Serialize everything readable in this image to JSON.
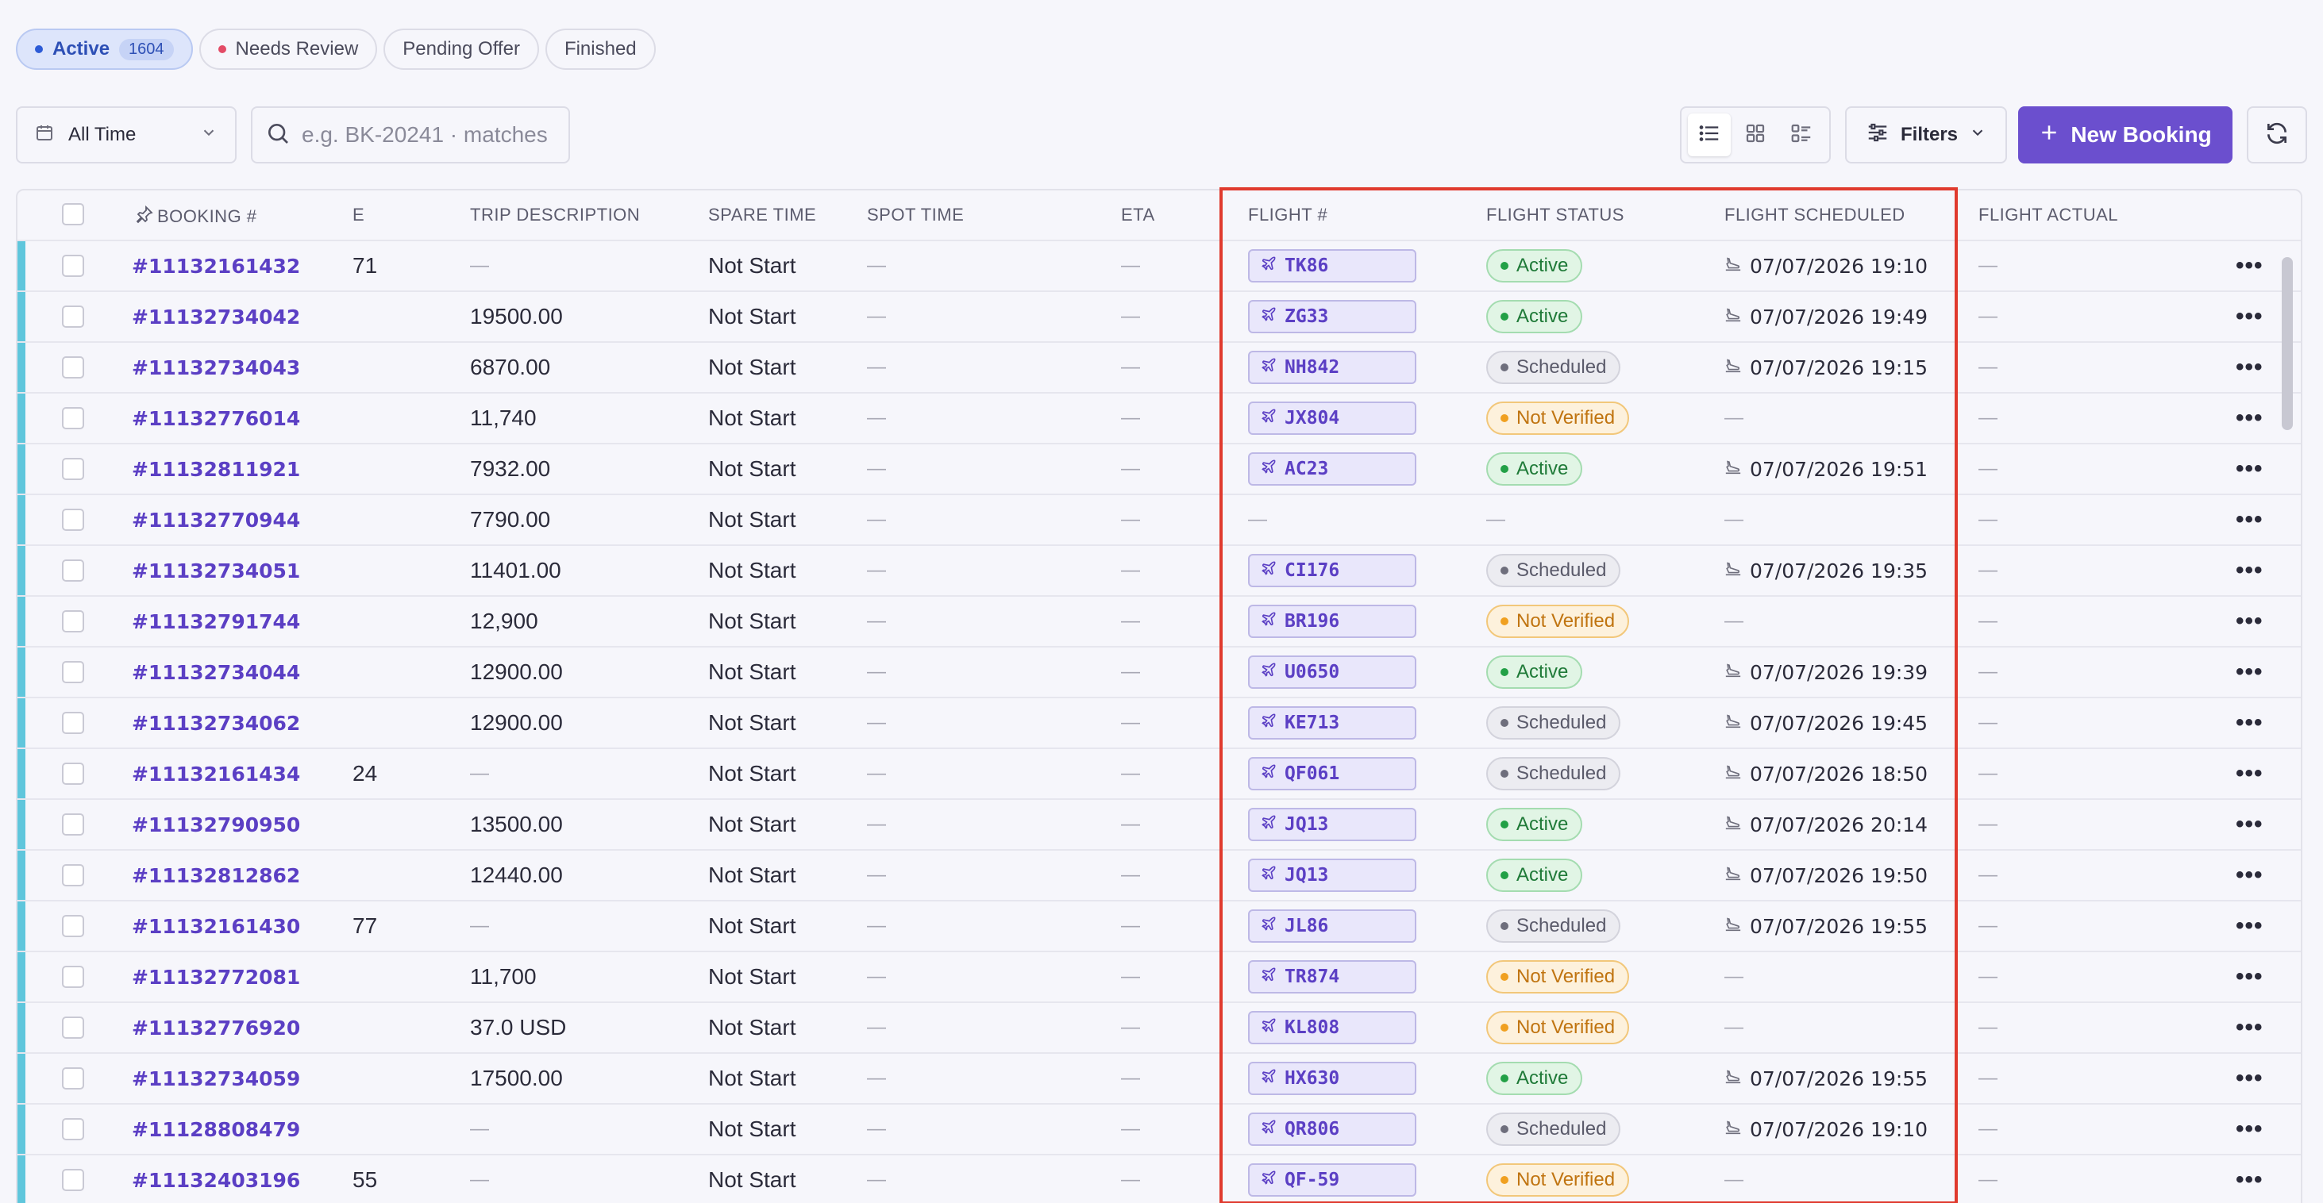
{
  "tabs": [
    {
      "label": "Active",
      "count": "1604",
      "active": true,
      "dot": true
    },
    {
      "label": "Needs Review",
      "count": "",
      "active": false,
      "dot": true
    },
    {
      "label": "Pending Offer",
      "count": "",
      "active": false,
      "dot": false
    },
    {
      "label": "Finished",
      "count": "",
      "active": false,
      "dot": false
    }
  ],
  "toolbar": {
    "date_range": "All Time",
    "search_placeholder": "e.g. BK-20241 · matches",
    "filters_label": "Filters",
    "new_booking_label": "New Booking"
  },
  "table": {
    "columns": [
      "BOOKING #",
      "E",
      "TRIP DESCRIPTION",
      "SPARE TIME",
      "SPOT TIME",
      "ETA",
      "FLIGHT #",
      "FLIGHT STATUS",
      "FLIGHT SCHEDULED",
      "FLIGHT ACTUAL"
    ],
    "dash": "—",
    "rows": [
      {
        "booking": "#11132161432",
        "e": "71",
        "trip": "—",
        "spare": "Not Start",
        "flight": "TK86",
        "status": "Active",
        "scheduled": "07/07/2026 19:10"
      },
      {
        "booking": "#11132734042",
        "e": "",
        "trip": "19500.00",
        "spare": "Not Start",
        "flight": "ZG33",
        "status": "Active",
        "scheduled": "07/07/2026 19:49"
      },
      {
        "booking": "#11132734043",
        "e": "",
        "trip": "6870.00",
        "spare": "Not Start",
        "flight": "NH842",
        "status": "Scheduled",
        "scheduled": "07/07/2026 19:15"
      },
      {
        "booking": "#11132776014",
        "e": "",
        "trip": "11,740",
        "spare": "Not Start",
        "flight": "JX804",
        "status": "Not Verified",
        "scheduled": ""
      },
      {
        "booking": "#11132811921",
        "e": "",
        "trip": "7932.00",
        "spare": "Not Start",
        "flight": "AC23",
        "status": "Active",
        "scheduled": "07/07/2026 19:51"
      },
      {
        "booking": "#11132770944",
        "e": "",
        "trip": "7790.00",
        "spare": "Not Start",
        "flight": "",
        "status": "",
        "scheduled": ""
      },
      {
        "booking": "#11132734051",
        "e": "",
        "trip": "11401.00",
        "spare": "Not Start",
        "flight": "CI176",
        "status": "Scheduled",
        "scheduled": "07/07/2026 19:35"
      },
      {
        "booking": "#11132791744",
        "e": "",
        "trip": "12,900",
        "spare": "Not Start",
        "flight": "BR196",
        "status": "Not Verified",
        "scheduled": ""
      },
      {
        "booking": "#11132734044",
        "e": "",
        "trip": "12900.00",
        "spare": "Not Start",
        "flight": "U0650",
        "status": "Active",
        "scheduled": "07/07/2026 19:39"
      },
      {
        "booking": "#11132734062",
        "e": "",
        "trip": "12900.00",
        "spare": "Not Start",
        "flight": "KE713",
        "status": "Scheduled",
        "scheduled": "07/07/2026 19:45"
      },
      {
        "booking": "#11132161434",
        "e": "24",
        "trip": "—",
        "spare": "Not Start",
        "flight": "QF061",
        "status": "Scheduled",
        "scheduled": "07/07/2026 18:50"
      },
      {
        "booking": "#11132790950",
        "e": "",
        "trip": "13500.00",
        "spare": "Not Start",
        "flight": "JQ13",
        "status": "Active",
        "scheduled": "07/07/2026 20:14"
      },
      {
        "booking": "#11132812862",
        "e": "",
        "trip": "12440.00",
        "spare": "Not Start",
        "flight": "JQ13",
        "status": "Active",
        "scheduled": "07/07/2026 19:50"
      },
      {
        "booking": "#11132161430",
        "e": "77",
        "trip": "—",
        "spare": "Not Start",
        "flight": "JL86",
        "status": "Scheduled",
        "scheduled": "07/07/2026 19:55"
      },
      {
        "booking": "#11132772081",
        "e": "",
        "trip": "11,700",
        "spare": "Not Start",
        "flight": "TR874",
        "status": "Not Verified",
        "scheduled": ""
      },
      {
        "booking": "#11132776920",
        "e": "",
        "trip": "37.0 USD",
        "spare": "Not Start",
        "flight": "KL808",
        "status": "Not Verified",
        "scheduled": ""
      },
      {
        "booking": "#11132734059",
        "e": "",
        "trip": "17500.00",
        "spare": "Not Start",
        "flight": "HX630",
        "status": "Active",
        "scheduled": "07/07/2026 19:55"
      },
      {
        "booking": "#11128808479",
        "e": "",
        "trip": "—",
        "spare": "Not Start",
        "flight": "QR806",
        "status": "Scheduled",
        "scheduled": "07/07/2026 19:10"
      },
      {
        "booking": "#11132403196",
        "e": "55",
        "trip": "—",
        "spare": "Not Start",
        "flight": "QF-59",
        "status": "Not Verified",
        "scheduled": ""
      }
    ]
  },
  "icons": {
    "calendar": "calendar-icon",
    "search": "search-icon",
    "pin": "pin-icon",
    "plane": "plane-icon",
    "landing": "plane-landing-icon",
    "more": "more-horizontal-icon",
    "refresh": "refresh-icon"
  },
  "colors": {
    "accent": "#6b4fce",
    "row_stripe": "#5fc6dc",
    "highlight": "#e03a2e",
    "status_active": "#22a046",
    "status_scheduled": "#6e6e7c",
    "status_not_verified": "#f0a020"
  }
}
